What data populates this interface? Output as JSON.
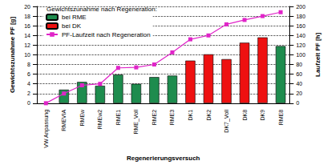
{
  "chart_data": {
    "type": "bar",
    "legend_title": "Gewichtszunahme nach Regeneration:",
    "x_label": "Regenerierungsversuch",
    "y_label": "Gewichtszunahme PF [g]",
    "y2_label": "Laufzeit PF [h]",
    "categories": [
      "VW Anpassung",
      "RMEVIA",
      "RMEw",
      "RMEw2",
      "RME1",
      "RME_Voll",
      "RME2",
      "RME3",
      "DK1",
      "DK2",
      "DK7_Voll",
      "DK8",
      "DK9",
      "RME8"
    ],
    "series": [
      {
        "name": "bei RME",
        "type": "bar",
        "color": "#1e8c4e",
        "values": [
          null,
          2.8,
          4.4,
          3.6,
          5.9,
          4.0,
          5.4,
          5.7,
          null,
          null,
          null,
          null,
          null,
          11.8
        ]
      },
      {
        "name": "bei DK",
        "type": "bar",
        "color": "#ee1111",
        "values": [
          null,
          null,
          null,
          null,
          null,
          null,
          null,
          null,
          8.8,
          10.1,
          9.1,
          12.5,
          13.6,
          null
        ]
      },
      {
        "name": "PF-Laufzeit nach Regeneration",
        "type": "line",
        "axis": "y2",
        "color": "#e024c8",
        "marker": "square",
        "line_style": "solid",
        "values": [
          0,
          20,
          37,
          40,
          73,
          74,
          80,
          105,
          132,
          140,
          163,
          172,
          180,
          188
        ]
      }
    ],
    "ylim": [
      0,
      20
    ],
    "yticks": [
      0,
      2,
      4,
      6,
      8,
      10,
      12,
      14,
      16,
      18,
      20
    ],
    "y2lim": [
      0,
      200
    ],
    "y2ticks": [
      0,
      20,
      40,
      60,
      80,
      100,
      120,
      140,
      160,
      180,
      200
    ],
    "grid": true,
    "legend": "upper left",
    "stacked": false,
    "data_labels": false
  }
}
